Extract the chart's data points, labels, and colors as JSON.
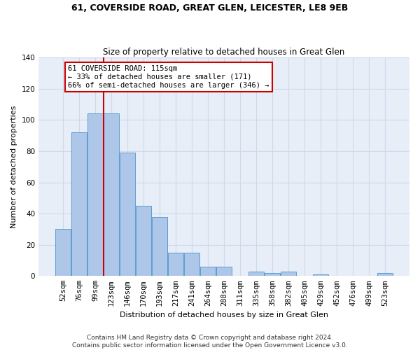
{
  "title": "61, COVERSIDE ROAD, GREAT GLEN, LEICESTER, LE8 9EB",
  "subtitle": "Size of property relative to detached houses in Great Glen",
  "xlabel": "Distribution of detached houses by size in Great Glen",
  "ylabel": "Number of detached properties",
  "categories": [
    "52sqm",
    "76sqm",
    "99sqm",
    "123sqm",
    "146sqm",
    "170sqm",
    "193sqm",
    "217sqm",
    "241sqm",
    "264sqm",
    "288sqm",
    "311sqm",
    "335sqm",
    "358sqm",
    "382sqm",
    "405sqm",
    "429sqm",
    "452sqm",
    "476sqm",
    "499sqm",
    "523sqm"
  ],
  "values": [
    30,
    92,
    104,
    104,
    79,
    45,
    38,
    15,
    15,
    6,
    6,
    0,
    3,
    2,
    3,
    0,
    1,
    0,
    0,
    0,
    2
  ],
  "bar_color": "#aec6e8",
  "bar_edge_color": "#5a9fd4",
  "grid_color": "#d0d8e8",
  "background_color": "#e8eef8",
  "vline_color": "#cc0000",
  "vline_x": 2.5,
  "annotation_text": "61 COVERSIDE ROAD: 115sqm\n← 33% of detached houses are smaller (171)\n66% of semi-detached houses are larger (346) →",
  "annotation_box_color": "#ffffff",
  "annotation_box_edge": "#cc0000",
  "footer_text": "Contains HM Land Registry data © Crown copyright and database right 2024.\nContains public sector information licensed under the Open Government Licence v3.0.",
  "ylim": [
    0,
    140
  ],
  "yticks": [
    0,
    20,
    40,
    60,
    80,
    100,
    120,
    140
  ],
  "title_fontsize": 9,
  "subtitle_fontsize": 8.5,
  "xlabel_fontsize": 8,
  "ylabel_fontsize": 8,
  "tick_fontsize": 7.5,
  "annotation_fontsize": 7.5,
  "footer_fontsize": 6.5
}
